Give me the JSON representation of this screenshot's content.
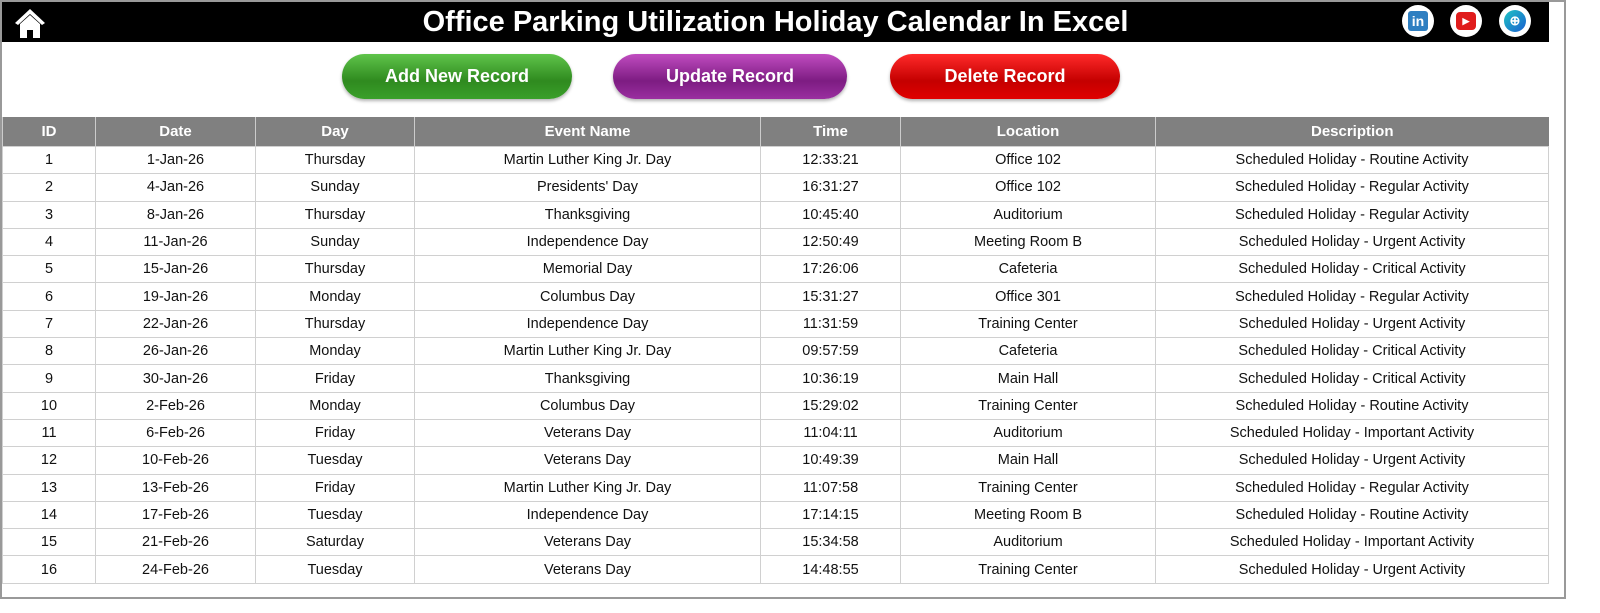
{
  "header": {
    "title": "Office Parking Utilization Holiday Calendar In Excel",
    "icons": [
      "home-icon",
      "linkedin-icon",
      "youtube-icon",
      "globe-icon"
    ]
  },
  "buttons": {
    "add": "Add New Record",
    "update": "Update Record",
    "delete": "Delete Record"
  },
  "colors": {
    "add": "#3aa02a",
    "update": "#8e2a94",
    "delete": "#e00000",
    "header_bg": "#808080"
  },
  "table": {
    "columns": [
      "ID",
      "Date",
      "Day",
      "Event Name",
      "Time",
      "Location",
      "Description"
    ],
    "rows": [
      [
        "1",
        "1-Jan-26",
        "Thursday",
        "Martin Luther King Jr. Day",
        "12:33:21",
        "Office 102",
        "Scheduled Holiday - Routine Activity"
      ],
      [
        "2",
        "4-Jan-26",
        "Sunday",
        "Presidents' Day",
        "16:31:27",
        "Office 102",
        "Scheduled Holiday - Regular Activity"
      ],
      [
        "3",
        "8-Jan-26",
        "Thursday",
        "Thanksgiving",
        "10:45:40",
        "Auditorium",
        "Scheduled Holiday - Regular Activity"
      ],
      [
        "4",
        "11-Jan-26",
        "Sunday",
        "Independence Day",
        "12:50:49",
        "Meeting Room B",
        "Scheduled Holiday - Urgent Activity"
      ],
      [
        "5",
        "15-Jan-26",
        "Thursday",
        "Memorial Day",
        "17:26:06",
        "Cafeteria",
        "Scheduled Holiday - Critical Activity"
      ],
      [
        "6",
        "19-Jan-26",
        "Monday",
        "Columbus Day",
        "15:31:27",
        "Office 301",
        "Scheduled Holiday - Regular Activity"
      ],
      [
        "7",
        "22-Jan-26",
        "Thursday",
        "Independence Day",
        "11:31:59",
        "Training Center",
        "Scheduled Holiday - Urgent Activity"
      ],
      [
        "8",
        "26-Jan-26",
        "Monday",
        "Martin Luther King Jr. Day",
        "09:57:59",
        "Cafeteria",
        "Scheduled Holiday - Critical Activity"
      ],
      [
        "9",
        "30-Jan-26",
        "Friday",
        "Thanksgiving",
        "10:36:19",
        "Main Hall",
        "Scheduled Holiday - Critical Activity"
      ],
      [
        "10",
        "2-Feb-26",
        "Monday",
        "Columbus Day",
        "15:29:02",
        "Training Center",
        "Scheduled Holiday - Routine Activity"
      ],
      [
        "11",
        "6-Feb-26",
        "Friday",
        "Veterans Day",
        "11:04:11",
        "Auditorium",
        "Scheduled Holiday - Important Activity"
      ],
      [
        "12",
        "10-Feb-26",
        "Tuesday",
        "Veterans Day",
        "10:49:39",
        "Main Hall",
        "Scheduled Holiday - Urgent Activity"
      ],
      [
        "13",
        "13-Feb-26",
        "Friday",
        "Martin Luther King Jr. Day",
        "11:07:58",
        "Training Center",
        "Scheduled Holiday - Regular Activity"
      ],
      [
        "14",
        "17-Feb-26",
        "Tuesday",
        "Independence Day",
        "17:14:15",
        "Meeting Room B",
        "Scheduled Holiday - Routine Activity"
      ],
      [
        "15",
        "21-Feb-26",
        "Saturday",
        "Veterans Day",
        "15:34:58",
        "Auditorium",
        "Scheduled Holiday - Important Activity"
      ],
      [
        "16",
        "24-Feb-26",
        "Tuesday",
        "Veterans Day",
        "14:48:55",
        "Training Center",
        "Scheduled Holiday - Urgent Activity"
      ]
    ]
  }
}
